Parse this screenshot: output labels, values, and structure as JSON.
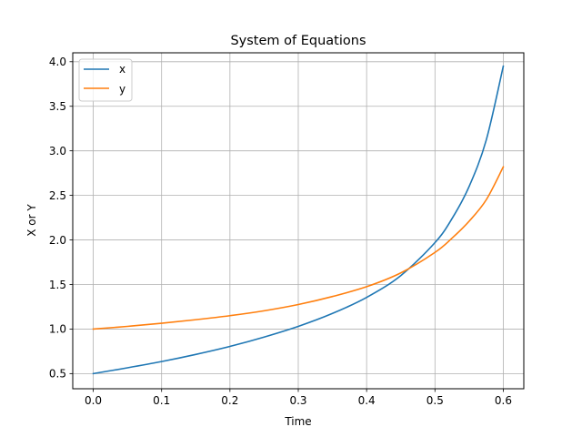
{
  "chart_data": {
    "type": "line",
    "title": "System of Equations",
    "xlabel": "Time",
    "ylabel": "X or Y",
    "xlim": [
      -0.03,
      0.63
    ],
    "ylim": [
      0.33,
      4.1
    ],
    "xticks": [
      0.0,
      0.1,
      0.2,
      0.3,
      0.4,
      0.5,
      0.6
    ],
    "xtick_labels": [
      "0.0",
      "0.1",
      "0.2",
      "0.3",
      "0.4",
      "0.5",
      "0.6"
    ],
    "yticks": [
      0.5,
      1.0,
      1.5,
      2.0,
      2.5,
      3.0,
      3.5,
      4.0
    ],
    "ytick_labels": [
      "0.5",
      "1.0",
      "1.5",
      "2.0",
      "2.5",
      "3.0",
      "3.5",
      "4.0"
    ],
    "grid": true,
    "legend_position": "top-left",
    "series": [
      {
        "name": "x",
        "color": "#1f77b4",
        "x": [
          0.0,
          0.05,
          0.1,
          0.15,
          0.2,
          0.25,
          0.3,
          0.35,
          0.4,
          0.45,
          0.5,
          0.525,
          0.55,
          0.575,
          0.6
        ],
        "y": [
          0.5,
          0.565,
          0.635,
          0.715,
          0.805,
          0.91,
          1.03,
          1.175,
          1.355,
          1.6,
          1.97,
          2.24,
          2.6,
          3.12,
          3.95
        ]
      },
      {
        "name": "y",
        "color": "#ff7f0e",
        "x": [
          0.0,
          0.05,
          0.1,
          0.15,
          0.2,
          0.25,
          0.3,
          0.35,
          0.4,
          0.45,
          0.5,
          0.525,
          0.55,
          0.575,
          0.6
        ],
        "y": [
          1.0,
          1.03,
          1.065,
          1.105,
          1.15,
          1.205,
          1.275,
          1.365,
          1.475,
          1.63,
          1.86,
          2.02,
          2.21,
          2.45,
          2.82
        ]
      }
    ]
  }
}
